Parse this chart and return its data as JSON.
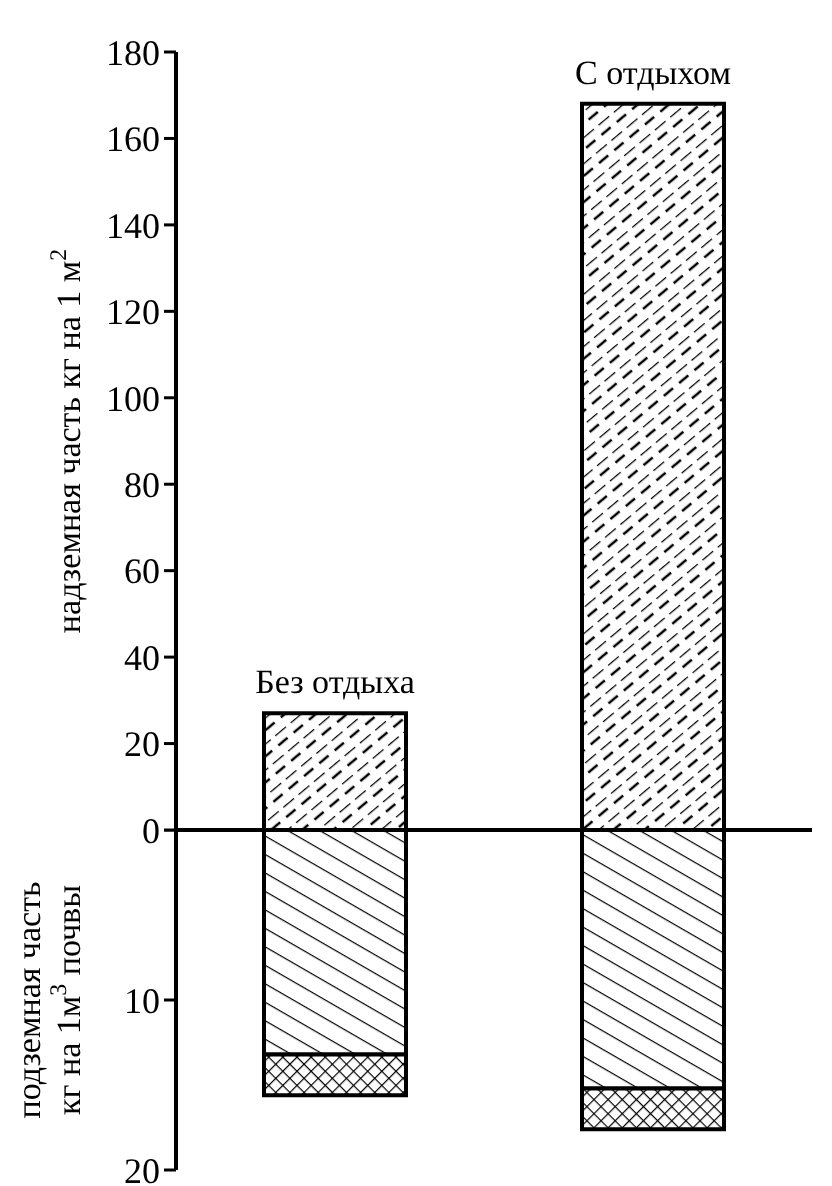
{
  "chart_data": [
    {
      "type": "bar",
      "categories": [
        "Без отдыха",
        "С отдыхом"
      ],
      "ylabel": "надземная часть кг на 1 м$^{2}$",
      "series": [
        {
          "color": "#000000",
          "values": [
            27,
            168
          ]
        }
      ],
      "ylim": [
        0,
        180
      ],
      "yticks": [
        0,
        20,
        40,
        60,
        80,
        100,
        120,
        140,
        160,
        180
      ],
      "grid": false,
      "legend": false,
      "tick_labels": "y"
    },
    {
      "type": "bar",
      "categories": [
        null,
        null
      ],
      "ylabel": "подземная часть\nкг на 1м$^{3}$ почвы",
      "stacked": true,
      "series": [
        {
          "color": "#000000",
          "values": [
            13.2,
            15.2
          ]
        },
        {
          "color": "#000000",
          "values": [
            2.4,
            2.4
          ]
        }
      ],
      "ylim": [
        20,
        0
      ],
      "yticks": [
        {
          "value": 0,
          "label": null
        },
        10,
        20
      ],
      "grid": false,
      "legend": false,
      "tick_labels": "y"
    }
  ]
}
